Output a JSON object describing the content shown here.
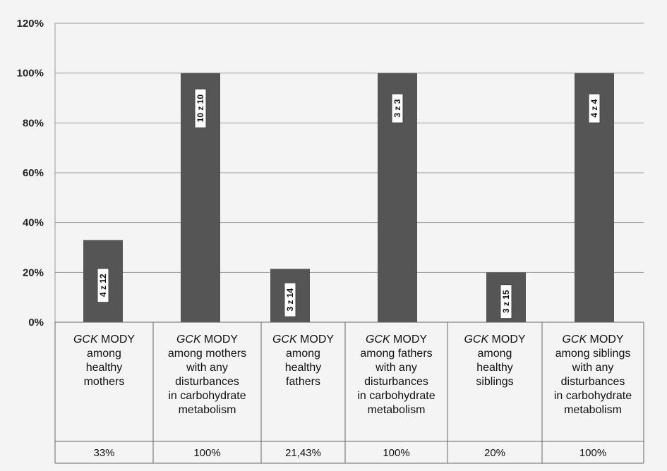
{
  "chart_data": {
    "type": "bar",
    "title": "",
    "xlabel": "",
    "ylabel": "",
    "ylim": [
      0,
      120
    ],
    "yticks": [
      "0%",
      "20%",
      "40%",
      "60%",
      "80%",
      "100%",
      "120%"
    ],
    "ytick_values": [
      0,
      20,
      40,
      60,
      80,
      100,
      120
    ],
    "categories": [
      {
        "prefix": "GCK",
        "rest": " MODY",
        "lines": [
          "among",
          "healthy",
          "mothers"
        ]
      },
      {
        "prefix": "GCK",
        "rest": " MODY",
        "lines": [
          "among mothers",
          "with any",
          "disturbances",
          "in carbohydrate",
          "metabolism"
        ]
      },
      {
        "prefix": "GCK",
        "rest": " MODY",
        "lines": [
          "among",
          "healthy",
          "fathers"
        ]
      },
      {
        "prefix": "GCK",
        "rest": " MODY",
        "lines": [
          "among fathers",
          "with any",
          "disturbances",
          "in carbohydrate",
          "metabolism"
        ]
      },
      {
        "prefix": "GCK",
        "rest": " MODY",
        "lines": [
          "among",
          "healthy",
          "siblings"
        ]
      },
      {
        "prefix": "GCK",
        "rest": " MODY",
        "lines": [
          "among siblings",
          "with any",
          "disturbances",
          "in carbohydrate",
          "metabolism"
        ]
      }
    ],
    "values": [
      33,
      100,
      21.43,
      100,
      20,
      100
    ],
    "bar_labels": [
      "4 z 12",
      "10 z 10",
      "3 z 14",
      "3 z 3",
      "3 z 15",
      "4 z 4"
    ],
    "table_row": [
      "33%",
      "100%",
      "21,43%",
      "100%",
      "20%",
      "100%"
    ],
    "colors": {
      "bar": "#555555",
      "grid": "#9a9a9a",
      "background": "#f4f4f4"
    }
  }
}
